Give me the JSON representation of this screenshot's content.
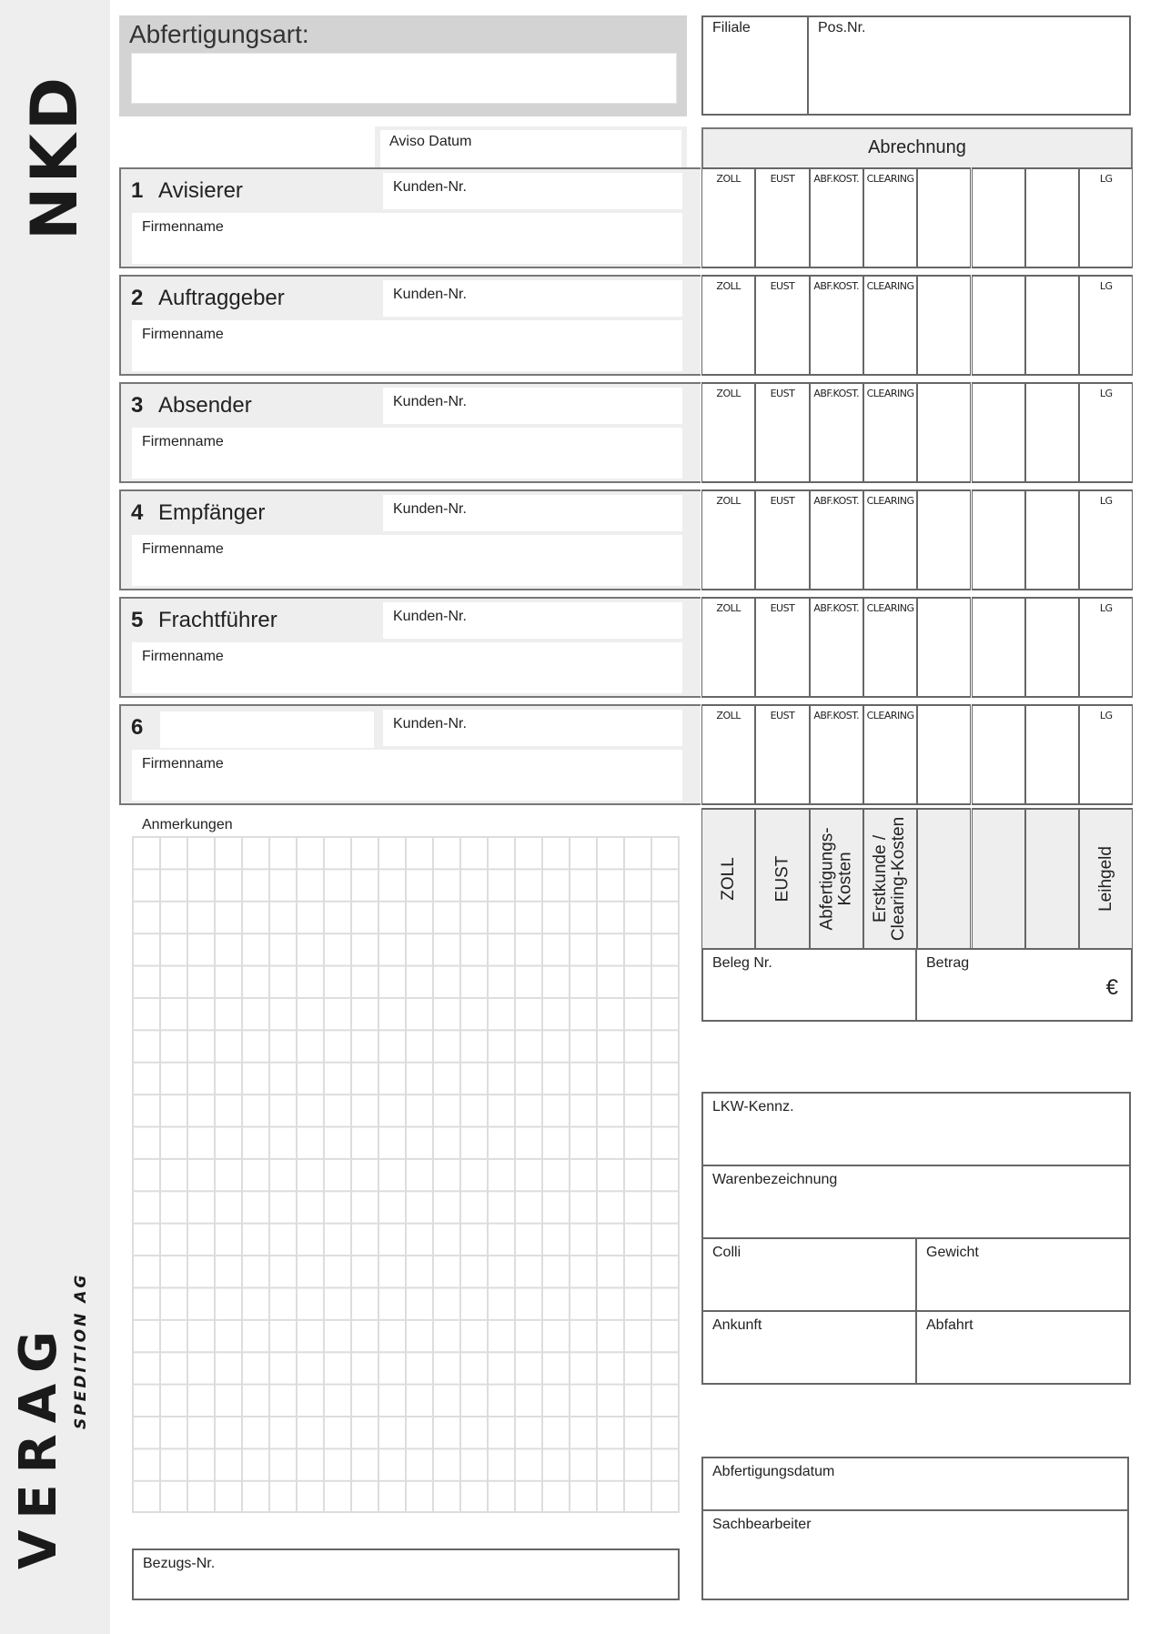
{
  "logos": {
    "top": "NKD",
    "bottom_main": "VERAG",
    "bottom_sub": "SPEDITION AG"
  },
  "header": {
    "abfertigungsart_label": "Abfertigungsart:",
    "filiale_label": "Filiale",
    "posnr_label": "Pos.Nr.",
    "aviso_datum_label": "Aviso Datum"
  },
  "abrechnung": {
    "title": "Abrechnung",
    "row_columns": [
      "ZOLL",
      "EUST",
      "ABF.KOST.",
      "CLEARING",
      "",
      "",
      "",
      "LG"
    ],
    "summary_columns": [
      "ZOLL",
      "EUST",
      "Abfertigungs-\nKosten",
      "Erstkunde /\nClearing-Kosten",
      "",
      "",
      "",
      "Leihgeld"
    ],
    "beleg_label": "Beleg Nr.",
    "betrag_label": "Betrag",
    "currency": "€"
  },
  "sections": [
    {
      "number": "1",
      "title": "Avisierer",
      "kunden_label": "Kunden-Nr.",
      "firmenname_label": "Firmenname"
    },
    {
      "number": "2",
      "title": "Auftraggeber",
      "kunden_label": "Kunden-Nr.",
      "firmenname_label": "Firmenname"
    },
    {
      "number": "3",
      "title": "Absender",
      "kunden_label": "Kunden-Nr.",
      "firmenname_label": "Firmenname"
    },
    {
      "number": "4",
      "title": "Empfänger",
      "kunden_label": "Kunden-Nr.",
      "firmenname_label": "Firmenname"
    },
    {
      "number": "5",
      "title": "Frachtführer",
      "kunden_label": "Kunden-Nr.",
      "firmenname_label": "Firmenname"
    },
    {
      "number": "6",
      "title": "",
      "kunden_label": "Kunden-Nr.",
      "firmenname_label": "Firmenname"
    }
  ],
  "anmerkungen_label": "Anmerkungen",
  "bezugs_nr_label": "Bezugs-Nr.",
  "transport": {
    "lkw_label": "LKW-Kennz.",
    "ware_label": "Warenbezeichnung",
    "colli_label": "Colli",
    "gewicht_label": "Gewicht",
    "ankunft_label": "Ankunft",
    "abfahrt_label": "Abfahrt"
  },
  "footer": {
    "abfertigungsdatum_label": "Abfertigungsdatum",
    "sachbearbeiter_label": "Sachbearbeiter"
  }
}
